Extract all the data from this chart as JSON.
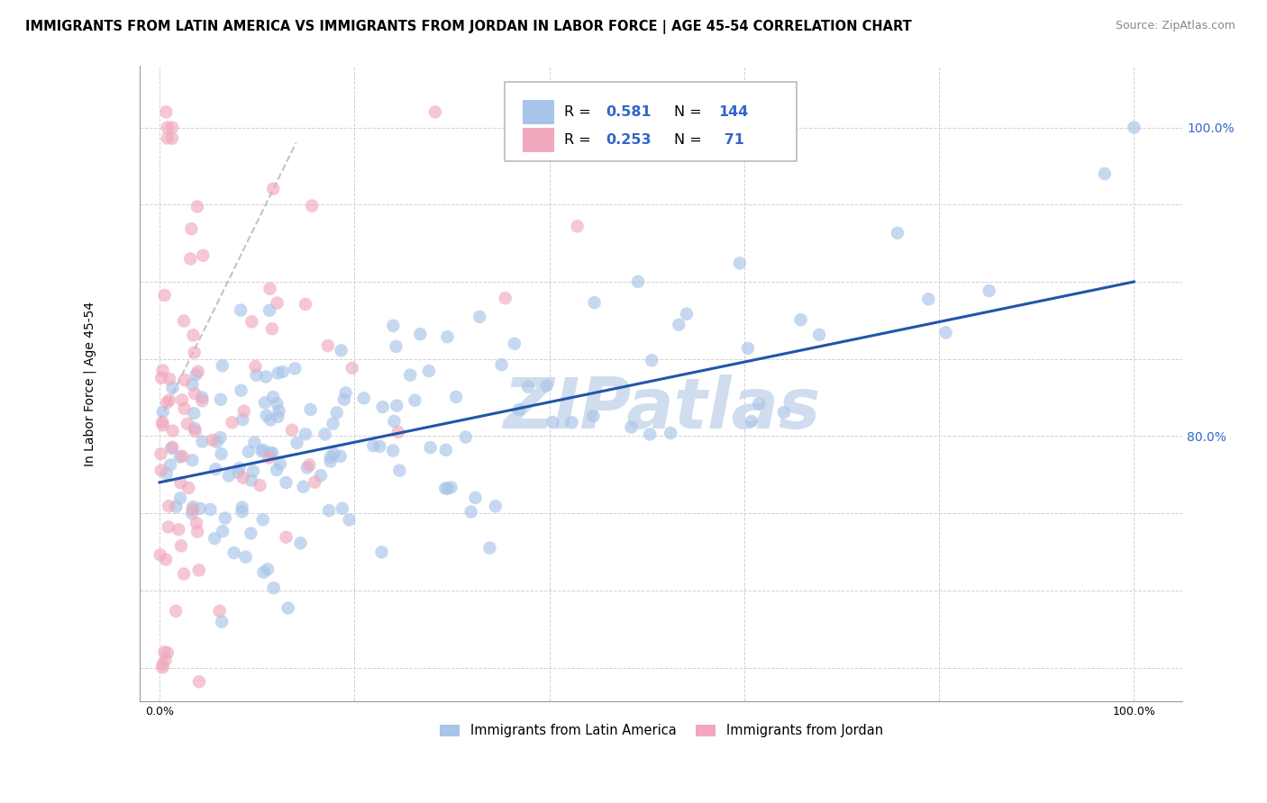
{
  "title": "IMMIGRANTS FROM LATIN AMERICA VS IMMIGRANTS FROM JORDAN IN LABOR FORCE | AGE 45-54 CORRELATION CHART",
  "source": "Source: ZipAtlas.com",
  "ylabel": "In Labor Force | Age 45-54",
  "blue_scatter_color": "#a8c4e8",
  "pink_scatter_color": "#f0a8bc",
  "blue_line_color": "#2255aa",
  "pink_line_color": "#cc3366",
  "watermark_text": "ZIPatlas",
  "watermark_color": "#c8d8ec",
  "xlim": [
    -0.02,
    1.05
  ],
  "ylim": [
    0.628,
    1.04
  ],
  "blue_R": 0.581,
  "blue_N": 144,
  "pink_R": 0.253,
  "pink_N": 71,
  "legend_label_blue": "Immigrants from Latin America",
  "legend_label_pink": "Immigrants from Jordan",
  "blue_line_x0": 0.0,
  "blue_line_y0": 0.77,
  "blue_line_x1": 1.0,
  "blue_line_y1": 0.9,
  "pink_line_x0": 0.0,
  "pink_line_y0": 0.81,
  "pink_line_x1": 0.14,
  "pink_line_y1": 0.99
}
